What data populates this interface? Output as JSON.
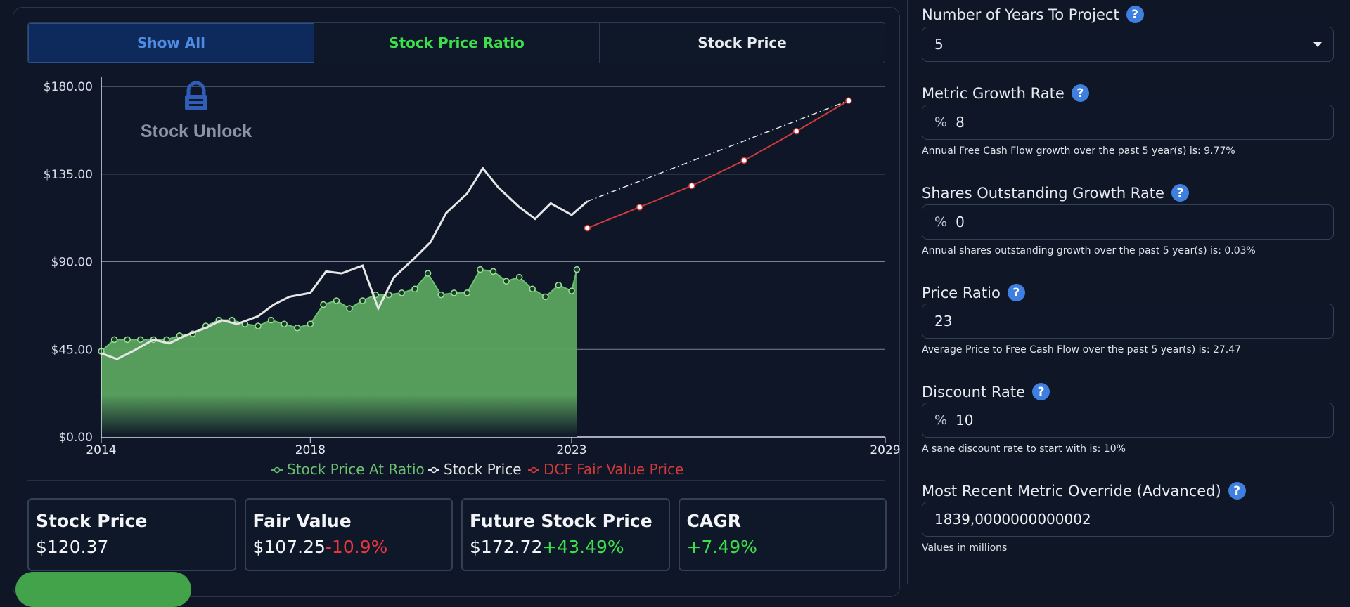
{
  "tabs": {
    "show_all": "Show All",
    "stock_price_ratio": "Stock Price Ratio",
    "stock_price": "Stock Price"
  },
  "chart_data": {
    "type": "line",
    "x_ticks": [
      "2014",
      "2018",
      "2023",
      "2029"
    ],
    "y_ticks": [
      "$0.00",
      "$45.00",
      "$90.00",
      "$135.00",
      "$180.00"
    ],
    "ylim": [
      0,
      180
    ],
    "xlim": [
      2014,
      2029
    ],
    "watermark": "Stock Unlock",
    "legend_position": "bottom",
    "series": [
      {
        "name": "Stock Price At Ratio",
        "color": "#5ab25f",
        "x": [
          2014.0,
          2014.25,
          2014.5,
          2014.75,
          2015.0,
          2015.25,
          2015.5,
          2015.75,
          2016.0,
          2016.25,
          2016.5,
          2016.75,
          2017.0,
          2017.25,
          2017.5,
          2017.75,
          2018.0,
          2018.25,
          2018.5,
          2018.75,
          2019.0,
          2019.25,
          2019.5,
          2019.75,
          2020.0,
          2020.25,
          2020.5,
          2020.75,
          2021.0,
          2021.25,
          2021.5,
          2021.75,
          2022.0,
          2022.25,
          2022.5,
          2022.75,
          2023.0,
          2023.1
        ],
        "y": [
          44,
          50,
          50,
          50,
          50,
          50,
          52,
          53,
          57,
          60,
          60,
          58,
          57,
          60,
          58,
          56,
          58,
          68,
          70,
          66,
          70,
          73,
          73,
          74,
          76,
          84,
          73,
          74,
          74,
          86,
          85,
          80,
          82,
          76,
          72,
          78,
          75,
          86
        ]
      },
      {
        "name": "Stock Price",
        "color": "#e6e6e6",
        "x": [
          2014.0,
          2014.3,
          2014.6,
          2015.0,
          2015.3,
          2015.6,
          2016.0,
          2016.3,
          2016.6,
          2017.0,
          2017.3,
          2017.6,
          2018.0,
          2018.3,
          2018.6,
          2019.0,
          2019.3,
          2019.6,
          2020.0,
          2020.3,
          2020.6,
          2021.0,
          2021.3,
          2021.6,
          2022.0,
          2022.3,
          2022.6,
          2023.0,
          2023.3
        ],
        "y": [
          43,
          40,
          44,
          50,
          48,
          52,
          56,
          60,
          58,
          62,
          68,
          72,
          74,
          85,
          84,
          88,
          66,
          82,
          92,
          100,
          115,
          125,
          138,
          128,
          118,
          112,
          120,
          114,
          121
        ]
      },
      {
        "name": "DCF Fair Value Price",
        "color": "#d23a3a",
        "x": [
          2023.3,
          2024.3,
          2025.3,
          2026.3,
          2027.3,
          2028.3
        ],
        "y": [
          107.25,
          118,
          129,
          142,
          157,
          172.72
        ]
      }
    ]
  },
  "cards": [
    {
      "title": "Stock Price",
      "value": "$120.37",
      "delta": ""
    },
    {
      "title": "Fair Value",
      "value": "$107.25",
      "delta": "-10.9%"
    },
    {
      "title": "Future Stock Price",
      "value": "$172.72",
      "delta": "+43.49%"
    },
    {
      "title": "CAGR",
      "value": "",
      "delta": "+7.49%"
    }
  ],
  "fields": {
    "years": {
      "label": "Number of Years To Project",
      "value": "5"
    },
    "metric_growth": {
      "label": "Metric Growth Rate",
      "prefix": "%",
      "value": "8",
      "hint": "Annual Free Cash Flow growth over the past 5 year(s) is: 9.77%"
    },
    "shares_growth": {
      "label": "Shares Outstanding Growth Rate",
      "prefix": "%",
      "value": "0",
      "hint": "Annual shares outstanding growth over the past 5 year(s) is: 0.03%"
    },
    "price_ratio": {
      "label": "Price Ratio",
      "value": "23",
      "hint": "Average Price to Free Cash Flow over the past 5 year(s) is: 27.47"
    },
    "discount_rate": {
      "label": "Discount Rate",
      "prefix": "%",
      "value": "10",
      "hint": "A sane discount rate to start with is: 10%"
    },
    "metric_override": {
      "label": "Most Recent Metric Override (Advanced)",
      "value": "1839,0000000000002",
      "hint": "Values in millions"
    }
  },
  "help_glyph": "?"
}
